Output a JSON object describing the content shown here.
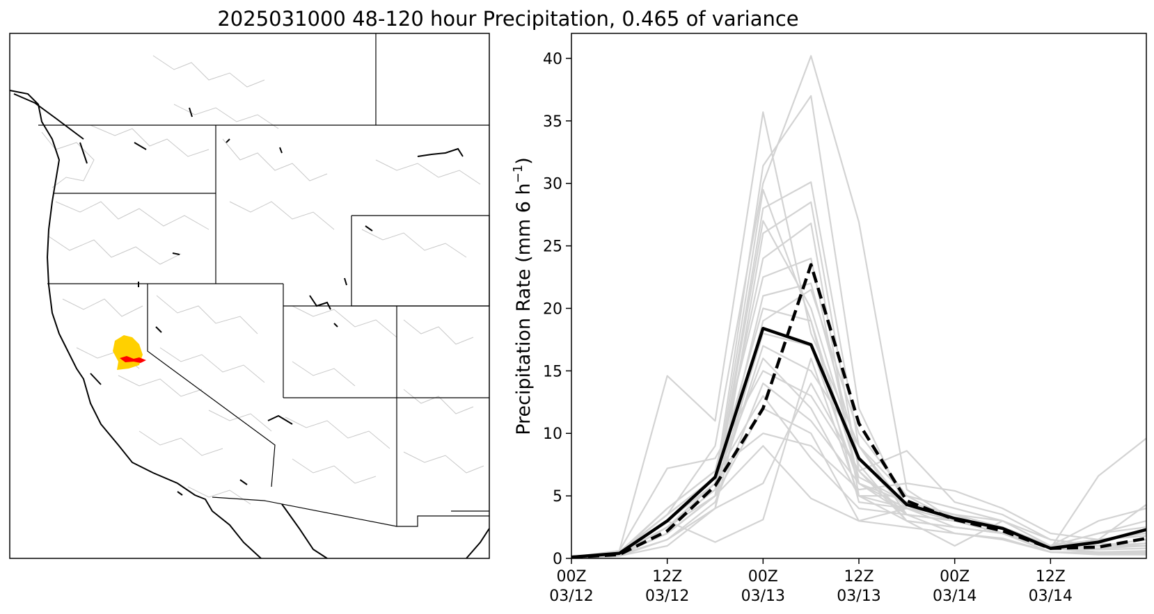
{
  "figure": {
    "title": "2025031000 48-120 hour Precipitation, 0.465 of variance"
  },
  "map_panel": {
    "description_colors": {
      "boundary": "#000000",
      "basin_lines": "#c8c8c8",
      "positive_loading": "#ffd000",
      "strong_loading": "#ff0000"
    }
  },
  "chart_data": {
    "type": "line",
    "title": "",
    "xlabel": "",
    "ylabel": "Precipitation Rate (mm 6 h",
    "ylabel_superscript": "−1",
    "ylabel_close": ")",
    "ylim": [
      0,
      42
    ],
    "xlim": [
      0,
      18
    ],
    "yticks": [
      0,
      5,
      10,
      15,
      20,
      25,
      30,
      35,
      40
    ],
    "xticks": [
      {
        "value": 0,
        "line1": "00Z",
        "line2": "03/12"
      },
      {
        "value": 3,
        "line1": "12Z",
        "line2": "03/12"
      },
      {
        "value": 6,
        "line1": "00Z",
        "line2": "03/13"
      },
      {
        "value": 9,
        "line1": "12Z",
        "line2": "03/13"
      },
      {
        "value": 12,
        "line1": "00Z",
        "line2": "03/14"
      },
      {
        "value": 15,
        "line1": "12Z",
        "line2": "03/14"
      }
    ],
    "x": [
      0,
      1.5,
      3,
      4.5,
      6,
      7.5,
      9,
      10.5,
      12,
      13.5,
      15,
      16.5,
      18
    ],
    "grid": false,
    "colors": {
      "members": "#d3d3d3",
      "solid": "#000000",
      "dashed": "#000000"
    },
    "series": [
      {
        "role": "solid",
        "values": [
          0.1,
          0.4,
          3.0,
          6.5,
          18.4,
          17.1,
          8.0,
          4.3,
          3.2,
          2.4,
          0.8,
          1.3,
          2.3
        ]
      },
      {
        "role": "dashed",
        "values": [
          0.1,
          0.3,
          2.2,
          5.8,
          12.0,
          23.5,
          10.8,
          4.6,
          3.1,
          2.2,
          0.8,
          0.9,
          1.6
        ]
      },
      {
        "role": "member",
        "values": [
          0.1,
          0.6,
          14.6,
          11.0,
          35.7,
          18.0,
          9.0,
          3.5,
          2.0,
          1.6,
          0.5,
          0.4,
          0.3
        ]
      },
      {
        "role": "member",
        "values": [
          0.1,
          0.5,
          3.5,
          9.0,
          30.0,
          40.2,
          26.9,
          5.5,
          3.0,
          2.5,
          1.0,
          1.5,
          2.0
        ]
      },
      {
        "role": "member",
        "values": [
          0.0,
          0.4,
          2.5,
          6.0,
          31.4,
          37.0,
          12.0,
          4.0,
          3.0,
          2.0,
          0.8,
          6.6,
          9.6
        ]
      },
      {
        "role": "member",
        "values": [
          0.1,
          0.3,
          2.0,
          5.0,
          28.0,
          30.1,
          9.0,
          4.0,
          3.5,
          2.5,
          0.8,
          1.0,
          1.2
        ]
      },
      {
        "role": "member",
        "values": [
          0.0,
          0.2,
          1.5,
          4.0,
          26.0,
          28.5,
          7.0,
          3.5,
          3.0,
          2.0,
          1.0,
          1.5,
          4.3
        ]
      },
      {
        "role": "member",
        "values": [
          0.1,
          0.5,
          3.0,
          6.0,
          24.0,
          26.8,
          5.0,
          3.0,
          2.5,
          2.0,
          0.8,
          0.5,
          0.4
        ]
      },
      {
        "role": "member",
        "values": [
          0.1,
          0.4,
          4.0,
          7.0,
          22.5,
          24.0,
          6.0,
          3.5,
          3.0,
          2.5,
          1.0,
          1.2,
          1.0
        ]
      },
      {
        "role": "member",
        "values": [
          0.0,
          0.3,
          2.0,
          5.0,
          21.0,
          22.0,
          8.0,
          4.0,
          3.0,
          2.0,
          0.8,
          0.7,
          0.8
        ]
      },
      {
        "role": "member",
        "values": [
          0.1,
          0.5,
          3.5,
          6.5,
          20.0,
          19.0,
          4.5,
          4.0,
          3.5,
          3.0,
          1.5,
          1.0,
          1.5
        ]
      },
      {
        "role": "member",
        "values": [
          0.0,
          0.2,
          1.0,
          4.0,
          19.0,
          21.5,
          10.0,
          5.0,
          4.0,
          3.0,
          1.0,
          2.0,
          3.0
        ]
      },
      {
        "role": "member",
        "values": [
          0.1,
          0.4,
          2.5,
          5.5,
          18.0,
          17.0,
          6.0,
          4.5,
          3.5,
          2.0,
          0.5,
          0.5,
          0.5
        ]
      },
      {
        "role": "member",
        "values": [
          0.1,
          0.3,
          2.0,
          5.0,
          17.0,
          15.0,
          9.0,
          5.0,
          3.0,
          2.5,
          0.8,
          1.5,
          2.0
        ]
      },
      {
        "role": "member",
        "values": [
          0.0,
          0.5,
          3.0,
          6.0,
          16.0,
          12.0,
          5.0,
          4.0,
          3.0,
          2.5,
          1.0,
          0.8,
          1.0
        ]
      },
      {
        "role": "member",
        "values": [
          0.1,
          0.6,
          7.2,
          8.0,
          15.0,
          13.0,
          7.0,
          8.6,
          4.5,
          3.5,
          1.5,
          1.0,
          1.2
        ]
      },
      {
        "role": "member",
        "values": [
          0.0,
          0.2,
          1.5,
          4.5,
          14.0,
          11.0,
          6.0,
          4.0,
          3.5,
          2.0,
          0.8,
          0.5,
          0.6
        ]
      },
      {
        "role": "member",
        "values": [
          0.1,
          0.4,
          3.5,
          6.5,
          13.0,
          8.0,
          4.0,
          3.5,
          3.0,
          2.5,
          1.0,
          2.0,
          2.5
        ]
      },
      {
        "role": "member",
        "values": [
          0.1,
          0.3,
          2.5,
          5.0,
          12.0,
          10.0,
          3.0,
          4.0,
          2.5,
          2.0,
          0.5,
          0.3,
          0.3
        ]
      },
      {
        "role": "member",
        "values": [
          0.0,
          0.5,
          4.0,
          7.0,
          10.0,
          9.0,
          5.5,
          6.0,
          5.4,
          4.0,
          2.0,
          1.5,
          2.0
        ]
      },
      {
        "role": "member",
        "values": [
          0.1,
          0.4,
          2.0,
          5.0,
          9.0,
          4.8,
          3.0,
          2.5,
          2.0,
          1.5,
          0.5,
          0.4,
          0.5
        ]
      },
      {
        "role": "member",
        "values": [
          0.0,
          0.3,
          1.5,
          4.0,
          6.0,
          14.0,
          7.0,
          3.0,
          1.0,
          3.0,
          1.5,
          1.0,
          1.0
        ]
      },
      {
        "role": "member",
        "values": [
          0.1,
          0.5,
          3.0,
          1.3,
          3.1,
          16.0,
          5.0,
          5.0,
          4.0,
          3.0,
          1.0,
          3.0,
          4.0
        ]
      },
      {
        "role": "member",
        "values": [
          0.1,
          0.4,
          2.5,
          5.5,
          29.5,
          19.0,
          6.5,
          4.5,
          3.5,
          2.5,
          1.0,
          1.5,
          1.8
        ]
      },
      {
        "role": "member",
        "values": [
          0.0,
          0.3,
          2.0,
          5.0,
          27.0,
          20.0,
          7.5,
          3.0,
          2.5,
          2.0,
          0.8,
          1.0,
          1.0
        ]
      }
    ]
  }
}
